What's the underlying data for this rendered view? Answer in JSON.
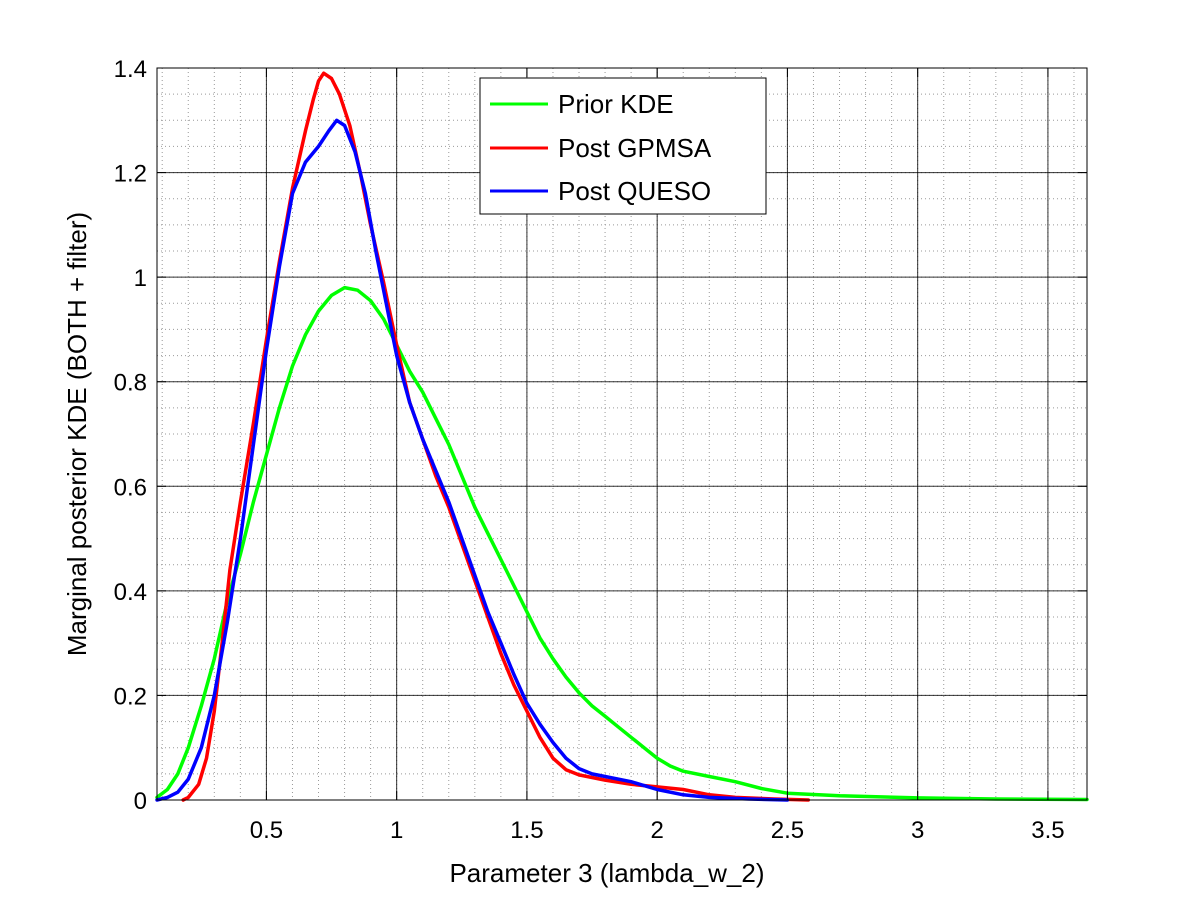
{
  "chart_data": {
    "type": "line",
    "title": "",
    "xlabel": "Parameter 3 (lambda_w_2)",
    "ylabel": "Marginal posterior KDE (BOTH + filter)",
    "xlim": [
      0.08,
      3.65
    ],
    "ylim": [
      0,
      1.4
    ],
    "xticks": [
      0.5,
      1,
      1.5,
      2,
      2.5,
      3,
      3.5
    ],
    "xtick_labels": [
      "0.5",
      "1",
      "1.5",
      "2",
      "2.5",
      "3",
      "3.5"
    ],
    "xminor_step": 0.1,
    "yticks": [
      0,
      0.2,
      0.4,
      0.6,
      0.8,
      1,
      1.2,
      1.4
    ],
    "ytick_labels": [
      "0",
      "0.2",
      "0.4",
      "0.6",
      "0.8",
      "1",
      "1.2",
      "1.4"
    ],
    "yminor_step": 0.05,
    "grid": true,
    "legend_position": "top-center",
    "series": [
      {
        "name": "Prior KDE",
        "color": "#00ff00",
        "points": [
          [
            0.08,
            0.005
          ],
          [
            0.12,
            0.02
          ],
          [
            0.16,
            0.05
          ],
          [
            0.2,
            0.1
          ],
          [
            0.25,
            0.18
          ],
          [
            0.3,
            0.27
          ],
          [
            0.35,
            0.38
          ],
          [
            0.4,
            0.47
          ],
          [
            0.45,
            0.57
          ],
          [
            0.5,
            0.66
          ],
          [
            0.55,
            0.75
          ],
          [
            0.6,
            0.83
          ],
          [
            0.65,
            0.89
          ],
          [
            0.7,
            0.935
          ],
          [
            0.75,
            0.965
          ],
          [
            0.8,
            0.98
          ],
          [
            0.85,
            0.975
          ],
          [
            0.9,
            0.955
          ],
          [
            0.95,
            0.92
          ],
          [
            1.0,
            0.87
          ],
          [
            1.05,
            0.82
          ],
          [
            1.1,
            0.78
          ],
          [
            1.15,
            0.73
          ],
          [
            1.2,
            0.68
          ],
          [
            1.25,
            0.62
          ],
          [
            1.3,
            0.56
          ],
          [
            1.35,
            0.51
          ],
          [
            1.4,
            0.46
          ],
          [
            1.45,
            0.41
          ],
          [
            1.5,
            0.36
          ],
          [
            1.55,
            0.31
          ],
          [
            1.6,
            0.27
          ],
          [
            1.65,
            0.235
          ],
          [
            1.7,
            0.205
          ],
          [
            1.75,
            0.18
          ],
          [
            1.8,
            0.16
          ],
          [
            1.85,
            0.14
          ],
          [
            1.9,
            0.12
          ],
          [
            1.95,
            0.1
          ],
          [
            2.0,
            0.08
          ],
          [
            2.05,
            0.065
          ],
          [
            2.1,
            0.055
          ],
          [
            2.2,
            0.045
          ],
          [
            2.3,
            0.035
          ],
          [
            2.4,
            0.022
          ],
          [
            2.5,
            0.013
          ],
          [
            2.7,
            0.008
          ],
          [
            3.0,
            0.004
          ],
          [
            3.3,
            0.002
          ],
          [
            3.65,
            0.001
          ]
        ]
      },
      {
        "name": "Post GPMSA",
        "color": "#ff0000",
        "points": [
          [
            0.18,
            0.0
          ],
          [
            0.2,
            0.005
          ],
          [
            0.24,
            0.03
          ],
          [
            0.27,
            0.08
          ],
          [
            0.3,
            0.17
          ],
          [
            0.33,
            0.3
          ],
          [
            0.36,
            0.44
          ],
          [
            0.4,
            0.57
          ],
          [
            0.45,
            0.72
          ],
          [
            0.5,
            0.88
          ],
          [
            0.55,
            1.03
          ],
          [
            0.6,
            1.17
          ],
          [
            0.65,
            1.28
          ],
          [
            0.68,
            1.34
          ],
          [
            0.7,
            1.375
          ],
          [
            0.72,
            1.39
          ],
          [
            0.75,
            1.38
          ],
          [
            0.78,
            1.35
          ],
          [
            0.82,
            1.29
          ],
          [
            0.86,
            1.2
          ],
          [
            0.9,
            1.1
          ],
          [
            0.95,
            0.99
          ],
          [
            1.0,
            0.87
          ],
          [
            1.05,
            0.76
          ],
          [
            1.1,
            0.69
          ],
          [
            1.15,
            0.62
          ],
          [
            1.2,
            0.56
          ],
          [
            1.25,
            0.49
          ],
          [
            1.3,
            0.42
          ],
          [
            1.35,
            0.35
          ],
          [
            1.4,
            0.28
          ],
          [
            1.45,
            0.22
          ],
          [
            1.5,
            0.17
          ],
          [
            1.55,
            0.12
          ],
          [
            1.6,
            0.08
          ],
          [
            1.65,
            0.058
          ],
          [
            1.7,
            0.048
          ],
          [
            1.8,
            0.038
          ],
          [
            1.9,
            0.03
          ],
          [
            2.0,
            0.025
          ],
          [
            2.1,
            0.02
          ],
          [
            2.2,
            0.01
          ],
          [
            2.3,
            0.005
          ],
          [
            2.45,
            0.002
          ],
          [
            2.58,
            0.0
          ]
        ]
      },
      {
        "name": "Post QUESO",
        "color": "#0000ff",
        "points": [
          [
            0.08,
            0.0
          ],
          [
            0.12,
            0.005
          ],
          [
            0.16,
            0.015
          ],
          [
            0.2,
            0.04
          ],
          [
            0.25,
            0.1
          ],
          [
            0.3,
            0.2
          ],
          [
            0.35,
            0.34
          ],
          [
            0.4,
            0.5
          ],
          [
            0.45,
            0.68
          ],
          [
            0.5,
            0.86
          ],
          [
            0.55,
            1.02
          ],
          [
            0.6,
            1.16
          ],
          [
            0.65,
            1.22
          ],
          [
            0.7,
            1.25
          ],
          [
            0.74,
            1.28
          ],
          [
            0.77,
            1.3
          ],
          [
            0.8,
            1.29
          ],
          [
            0.84,
            1.24
          ],
          [
            0.88,
            1.16
          ],
          [
            0.92,
            1.05
          ],
          [
            0.96,
            0.95
          ],
          [
            1.0,
            0.85
          ],
          [
            1.05,
            0.76
          ],
          [
            1.1,
            0.69
          ],
          [
            1.15,
            0.63
          ],
          [
            1.2,
            0.57
          ],
          [
            1.25,
            0.5
          ],
          [
            1.3,
            0.43
          ],
          [
            1.35,
            0.36
          ],
          [
            1.4,
            0.3
          ],
          [
            1.45,
            0.24
          ],
          [
            1.5,
            0.185
          ],
          [
            1.55,
            0.145
          ],
          [
            1.6,
            0.11
          ],
          [
            1.65,
            0.08
          ],
          [
            1.7,
            0.06
          ],
          [
            1.75,
            0.05
          ],
          [
            1.8,
            0.045
          ],
          [
            1.9,
            0.035
          ],
          [
            2.0,
            0.02
          ],
          [
            2.1,
            0.01
          ],
          [
            2.2,
            0.005
          ],
          [
            2.35,
            0.002
          ],
          [
            2.5,
            0.0
          ]
        ]
      }
    ]
  }
}
